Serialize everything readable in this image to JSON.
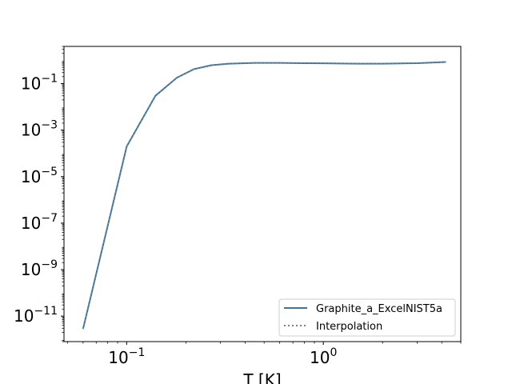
{
  "chart_data": {
    "type": "line",
    "title": "",
    "xlabel": "T [K]",
    "ylabel": "",
    "xscale": "log",
    "yscale": "log",
    "xlim": [
      0.048,
      5.0
    ],
    "ylim": [
      8e-13,
      4.0
    ],
    "x_ticks": [
      {
        "value": 0.1,
        "base": "10",
        "exp": "−1"
      },
      {
        "value": 1,
        "base": "10",
        "exp": "0"
      }
    ],
    "y_ticks": [
      {
        "value": 1e-11,
        "base": "10",
        "exp": "−11"
      },
      {
        "value": 1e-09,
        "base": "10",
        "exp": "−9"
      },
      {
        "value": 1e-07,
        "base": "10",
        "exp": "−7"
      },
      {
        "value": 1e-05,
        "base": "10",
        "exp": "−5"
      },
      {
        "value": 0.001,
        "base": "10",
        "exp": "−3"
      },
      {
        "value": 0.1,
        "base": "10",
        "exp": "−1"
      }
    ],
    "grid": false,
    "legend_position": "bottom-right",
    "series": [
      {
        "name": "Graphite_a_ExcelNIST5a",
        "color": "#3a75a0",
        "style": "solid",
        "x": [
          0.06,
          0.1,
          0.14,
          0.18,
          0.22,
          0.27,
          0.33,
          0.45,
          0.6,
          0.8,
          1.0,
          1.5,
          2.0,
          3.0,
          4.2
        ],
        "y": [
          2.8e-12,
          0.0002,
          0.03,
          0.18,
          0.42,
          0.62,
          0.72,
          0.78,
          0.78,
          0.76,
          0.75,
          0.72,
          0.72,
          0.76,
          0.85
        ]
      },
      {
        "name": "Interpolation",
        "color": "#7f7f7f",
        "style": "dotted",
        "x": [
          0.06,
          0.1,
          0.14,
          0.18,
          0.22,
          0.27,
          0.33,
          0.45,
          0.6,
          0.8,
          1.0,
          1.5,
          2.0,
          3.0,
          4.2
        ],
        "y": [
          2.8e-12,
          0.0002,
          0.03,
          0.18,
          0.42,
          0.62,
          0.72,
          0.78,
          0.78,
          0.76,
          0.75,
          0.72,
          0.72,
          0.76,
          0.85
        ]
      }
    ]
  }
}
